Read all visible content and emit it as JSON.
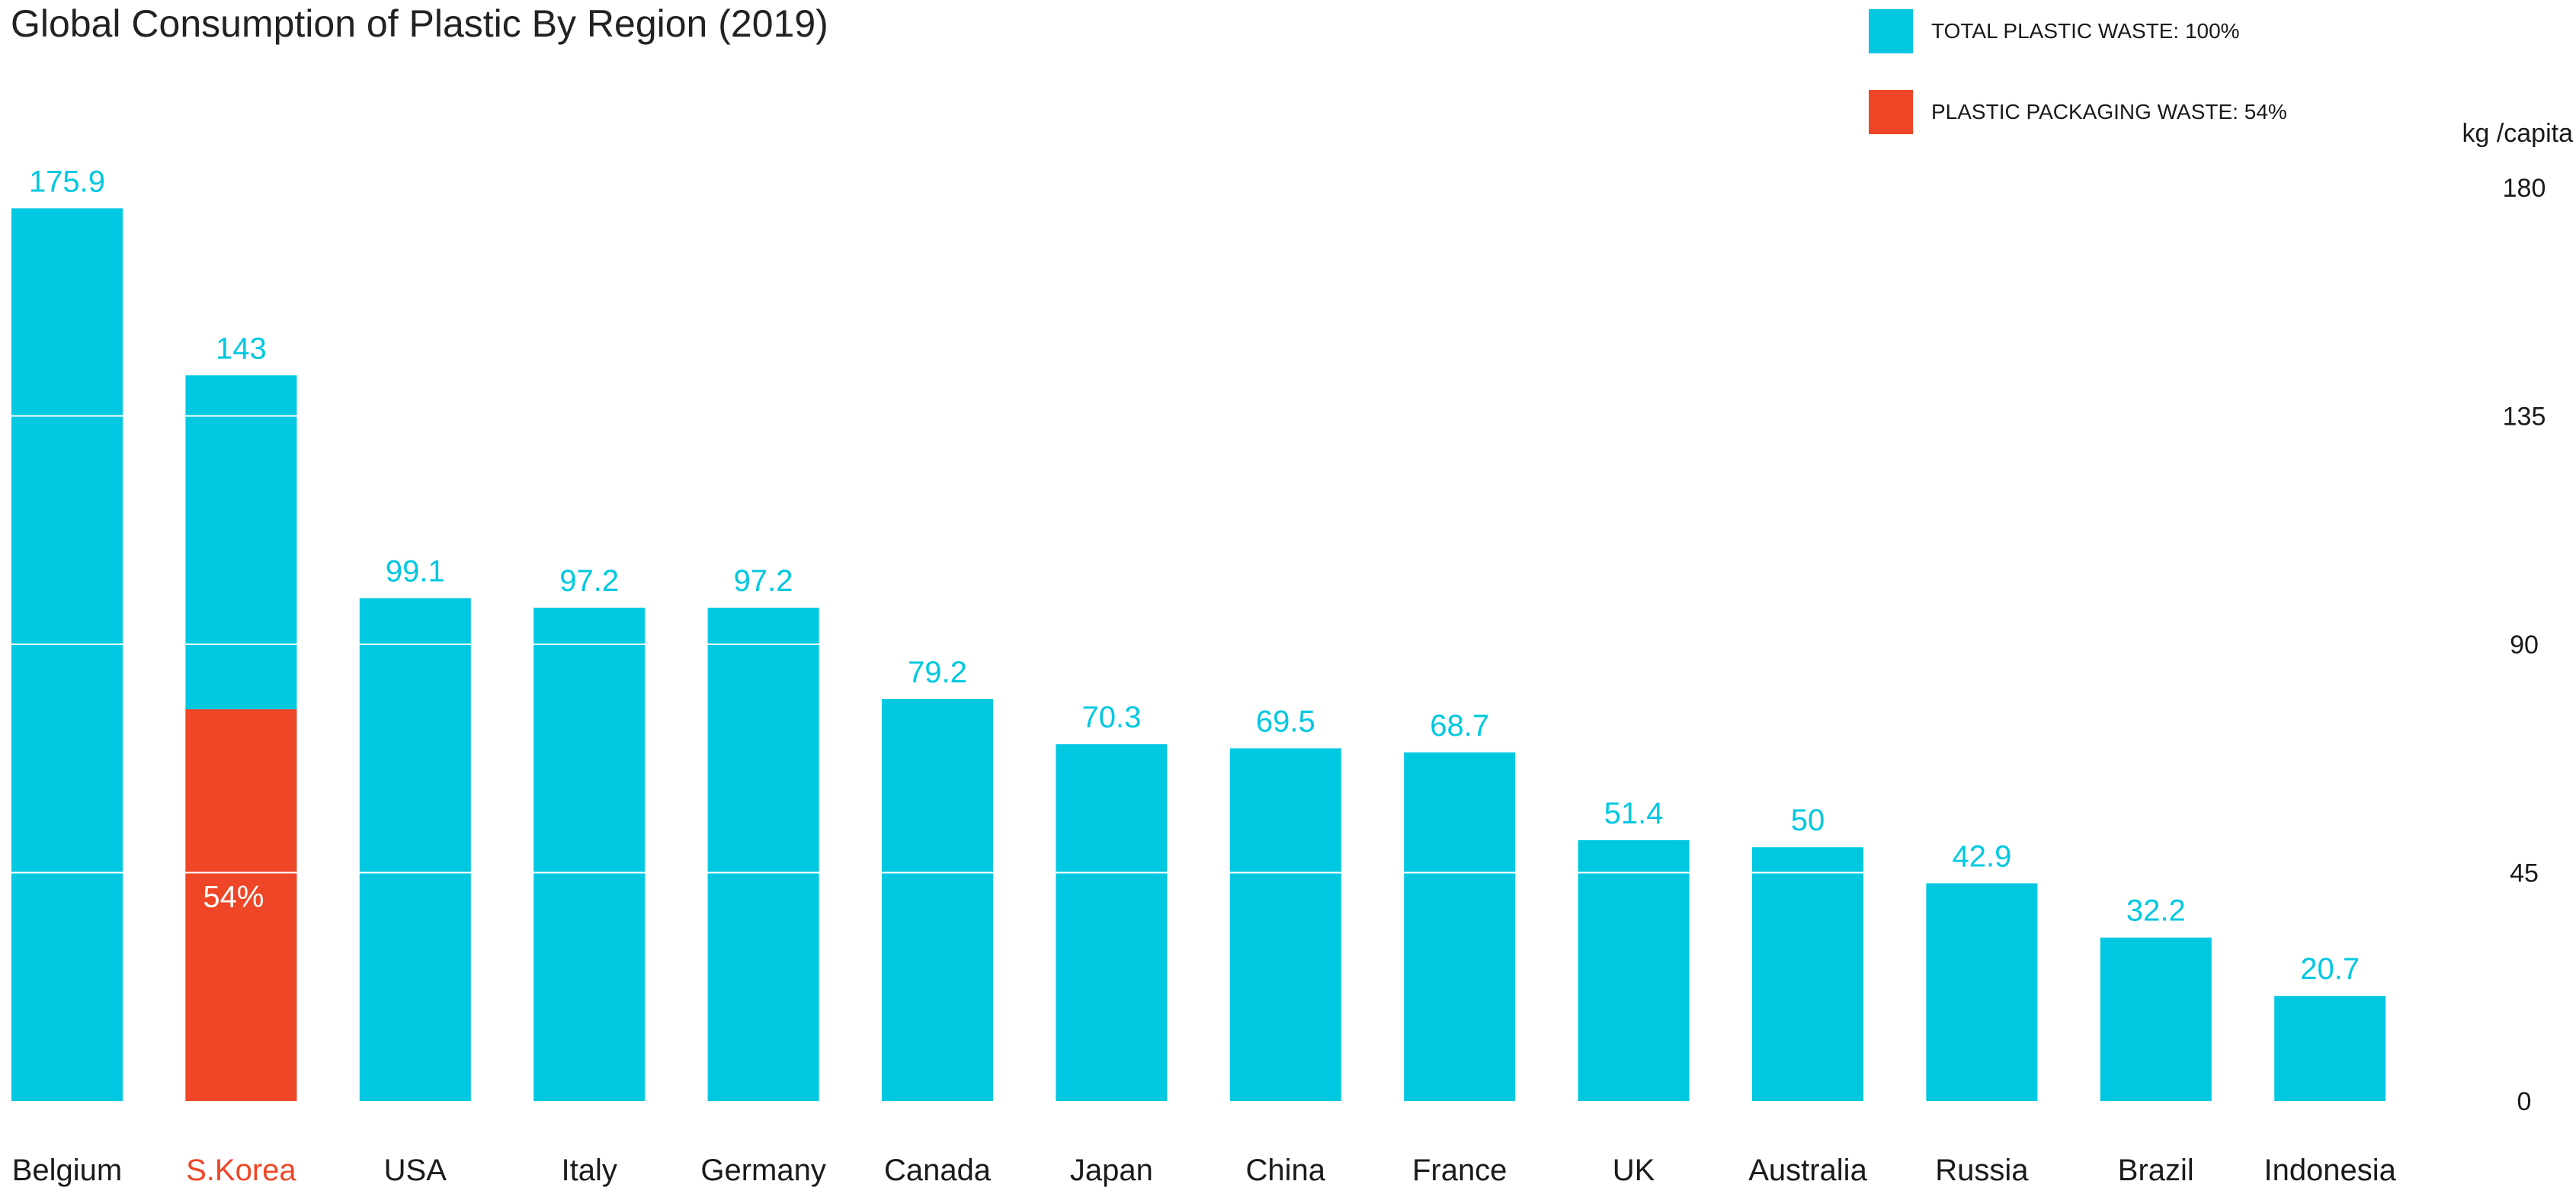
{
  "chart_data": {
    "type": "bar",
    "title": "Global Consumption of Plastic  By Region (2019)",
    "unit_label": "kg /capita",
    "ylim": [
      0,
      180
    ],
    "yticks": [
      0,
      45,
      90,
      135,
      180
    ],
    "y_axis_position": "right",
    "grid": true,
    "legend_position": "top-right",
    "categories": [
      "Belgium",
      "S.Korea",
      "USA",
      "Italy",
      "Germany",
      "Canada",
      "Japan",
      "China",
      "France",
      "UK",
      "Australia",
      "Russia",
      "Brazil",
      "Indonesia"
    ],
    "value_labels": [
      "175.9",
      "143",
      "99.1",
      "97.2",
      "97.2",
      "79.2",
      "70.3",
      "69.5",
      "68.7",
      "51.4",
      "50",
      "42.9",
      "32.2",
      "20.7"
    ],
    "series": [
      {
        "name": "TOTAL PLASTIC WASTE: 100%",
        "color": "#00C8E0",
        "values": [
          175.9,
          143,
          99.1,
          97.2,
          97.2,
          79.2,
          70.3,
          69.5,
          68.7,
          51.4,
          50,
          42.9,
          32.2,
          20.7
        ]
      },
      {
        "name": "PLASTIC PACKAGING WASTE: 54%",
        "color": "#EE4626",
        "values": [
          null,
          77.2,
          null,
          null,
          null,
          null,
          null,
          null,
          null,
          null,
          null,
          null,
          null,
          null
        ]
      }
    ],
    "highlight": {
      "category": "S.Korea",
      "inner_label": "54%",
      "label_color": "#EE4626"
    },
    "colors": {
      "value_label": "#00C8E0",
      "category_label": "#1a1a1a",
      "gridline": "#ffffff"
    }
  }
}
